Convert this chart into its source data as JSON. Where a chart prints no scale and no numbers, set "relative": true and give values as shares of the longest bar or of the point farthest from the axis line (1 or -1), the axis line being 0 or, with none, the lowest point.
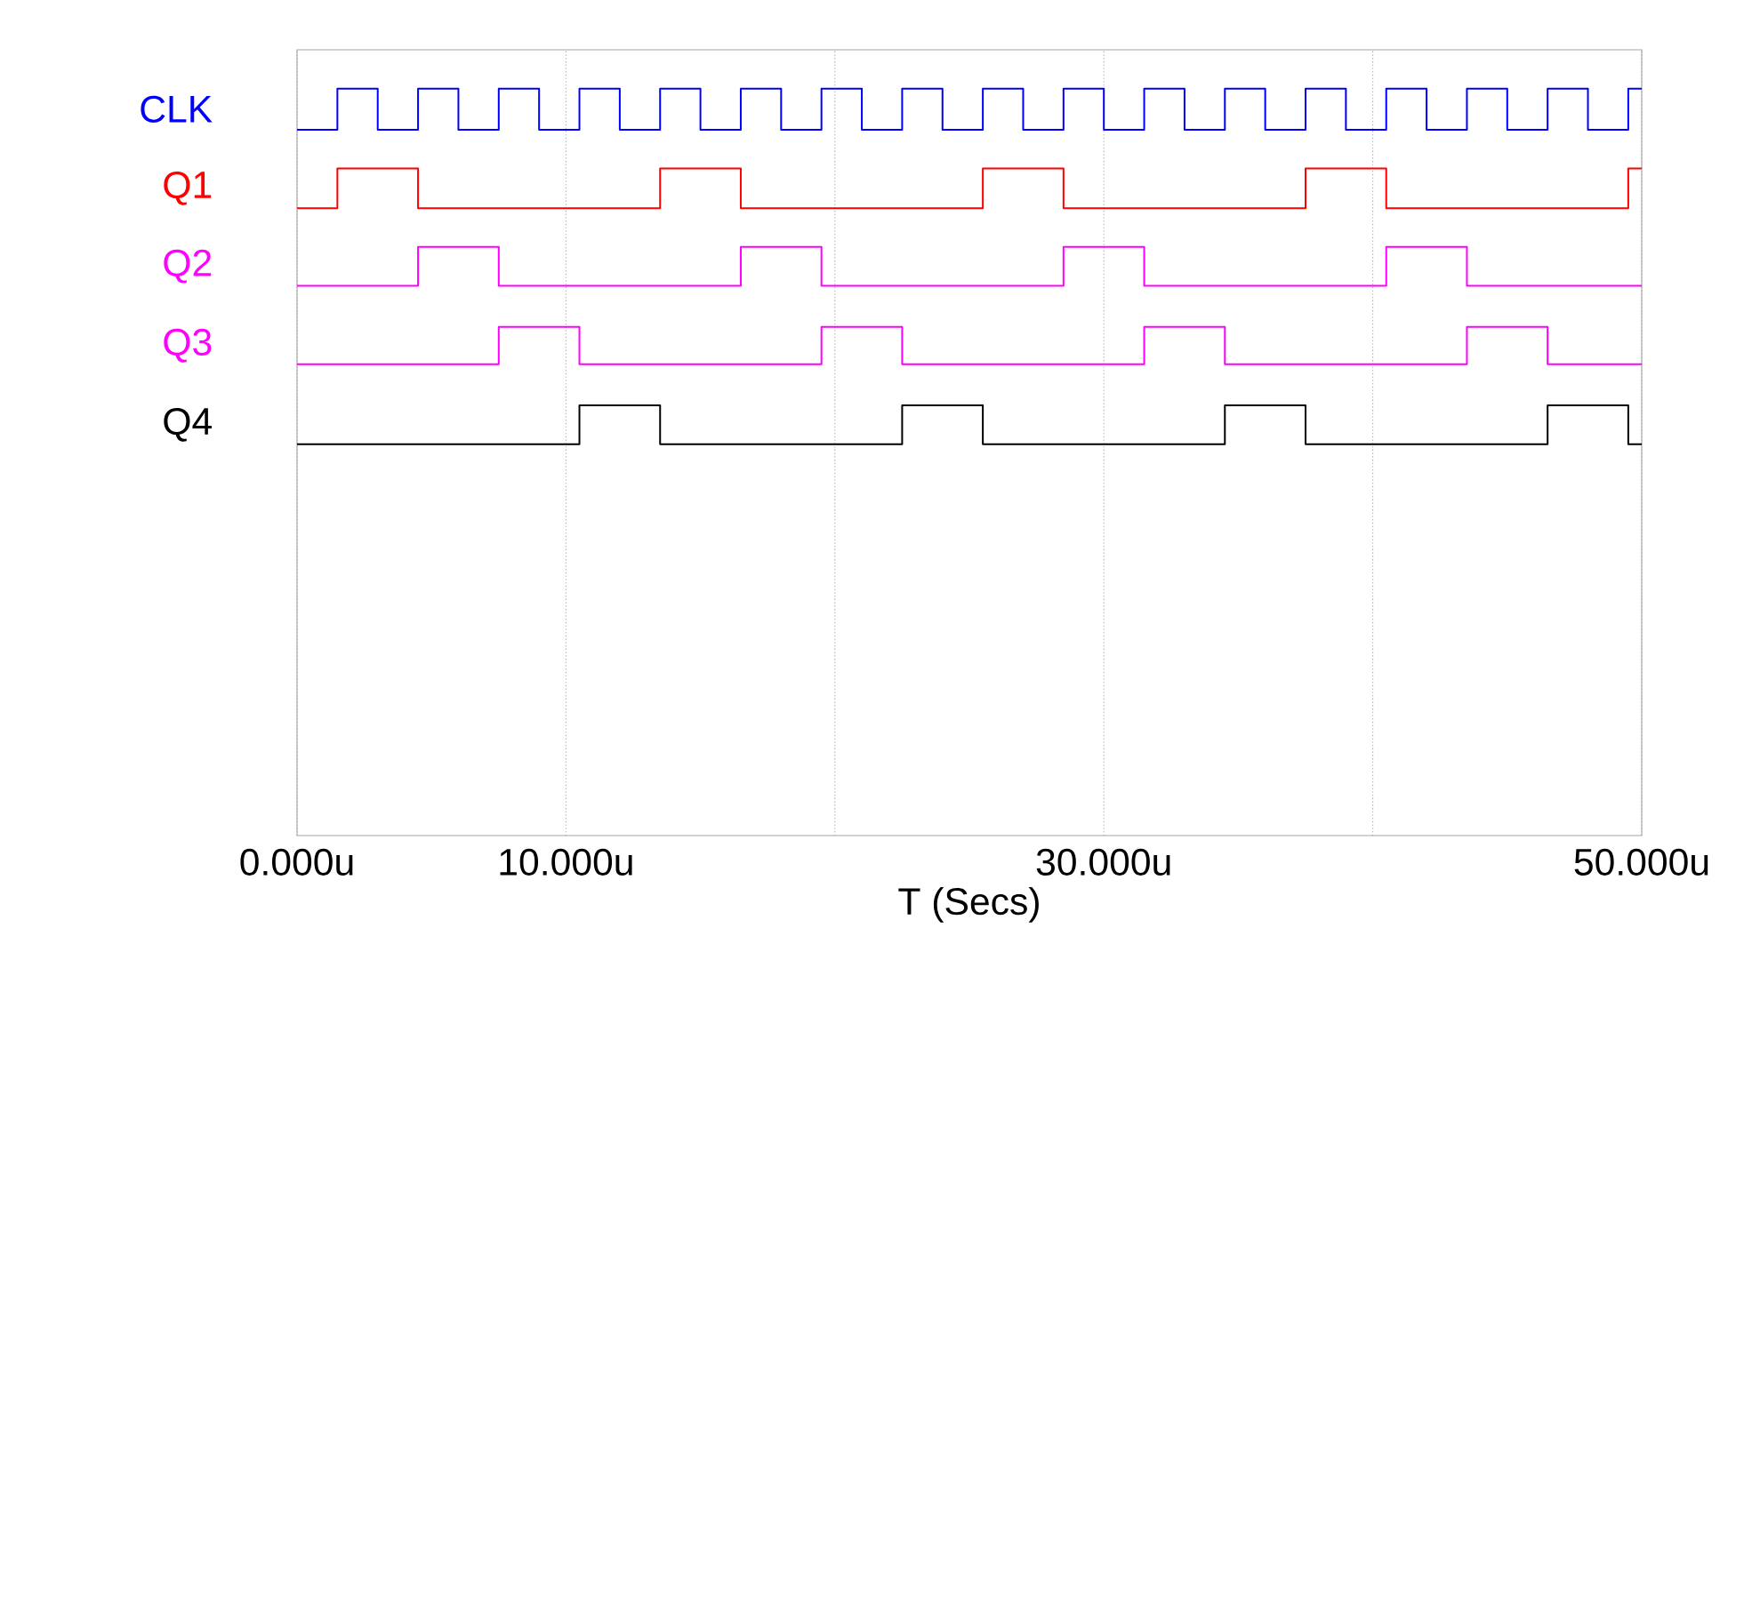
{
  "chart_data": {
    "type": "step",
    "relative": true,
    "xlabel": "T (Secs)",
    "xlim": [
      0,
      50
    ],
    "grid": "x",
    "legend": false,
    "xticks": [
      {
        "value": 0,
        "label": "0.000u"
      },
      {
        "value": 10,
        "label": "10.000u"
      },
      {
        "value": 20,
        "label": null
      },
      {
        "value": 30,
        "label": "30.000u"
      },
      {
        "value": 40,
        "label": null
      },
      {
        "value": 50,
        "label": "50.000u"
      }
    ],
    "series": [
      {
        "name": "CLK",
        "color": "#0000ff",
        "x": [
          0,
          1.5,
          3,
          4.5,
          6,
          7.5,
          9,
          10.5,
          12,
          13.5,
          15,
          16.5,
          18,
          19.5,
          21,
          22.5,
          24,
          25.5,
          27,
          28.5,
          30,
          31.5,
          33,
          34.5,
          36,
          37.5,
          39,
          40.5,
          42,
          43.5,
          45,
          46.5,
          48,
          49.5,
          50
        ],
        "values": [
          0.945,
          1,
          0.945,
          1,
          0.945,
          1,
          0.945,
          1,
          0.945,
          1,
          0.945,
          1,
          0.945,
          1,
          0.945,
          1,
          0.945,
          1,
          0.945,
          1,
          0.945,
          1,
          0.945,
          1,
          0.945,
          1,
          0.945,
          1,
          0.945,
          1,
          0.945,
          1,
          0.945,
          1,
          1
        ]
      },
      {
        "name": "Q1",
        "color": "#ff0000",
        "x": [
          0,
          1.5,
          4.5,
          13.5,
          16.5,
          25.5,
          28.5,
          37.5,
          40.5,
          49.5,
          50
        ],
        "values": [
          0.84,
          0.893,
          0.84,
          0.893,
          0.84,
          0.893,
          0.84,
          0.893,
          0.84,
          0.893,
          0.893
        ]
      },
      {
        "name": "Q2",
        "color": "#ff00ff",
        "x": [
          0,
          4.5,
          7.5,
          16.5,
          19.5,
          28.5,
          31.5,
          40.5,
          43.5,
          50
        ],
        "values": [
          0.736,
          0.788,
          0.736,
          0.788,
          0.736,
          0.788,
          0.736,
          0.788,
          0.736,
          0.736
        ]
      },
      {
        "name": "Q3",
        "color": "#ff00ff",
        "x": [
          0,
          7.5,
          10.5,
          19.5,
          22.5,
          31.5,
          34.5,
          43.5,
          46.5,
          50
        ],
        "values": [
          0.631,
          0.681,
          0.631,
          0.681,
          0.631,
          0.681,
          0.631,
          0.681,
          0.631,
          0.631
        ]
      },
      {
        "name": "Q4",
        "color": "#000000",
        "x": [
          0,
          10.5,
          13.5,
          22.5,
          25.5,
          34.5,
          37.5,
          46.5,
          49.5,
          50
        ],
        "values": [
          0.524,
          0.576,
          0.524,
          0.576,
          0.524,
          0.576,
          0.524,
          0.576,
          0.524,
          0.524
        ]
      }
    ]
  }
}
